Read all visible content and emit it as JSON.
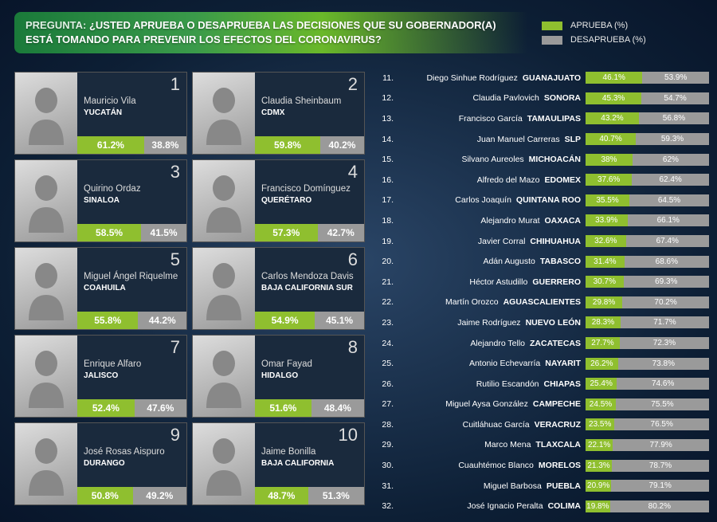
{
  "colors": {
    "approve": "#8fbf2f",
    "disapprove": "#9a9a9a"
  },
  "header": {
    "pregunta_label": "PREGUNTA:",
    "question": "¿USTED APRUEBA O DESAPRUEBA LAS DECISIONES QUE SU GOBERNADOR(A) ESTÁ TOMANDO PARA PREVENIR LOS EFECTOS DEL CORONAVIRUS?",
    "legend_approve": "APRUEBA (%)",
    "legend_disapprove": "DESAPRUEBA (%)"
  },
  "top": [
    {
      "rank": 1,
      "name": "Mauricio Vila",
      "state": "YUCATÁN",
      "approve": 61.2,
      "disapprove": 38.8
    },
    {
      "rank": 2,
      "name": "Claudia Sheinbaum",
      "state": "CDMX",
      "approve": 59.8,
      "disapprove": 40.2
    },
    {
      "rank": 3,
      "name": "Quirino Ordaz",
      "state": "SINALOA",
      "approve": 58.5,
      "disapprove": 41.5
    },
    {
      "rank": 4,
      "name": "Francisco Domínguez",
      "state": "QUERÉTARO",
      "approve": 57.3,
      "disapprove": 42.7
    },
    {
      "rank": 5,
      "name": "Miguel Ángel Riquelme",
      "state": "COAHUILA",
      "approve": 55.8,
      "disapprove": 44.2
    },
    {
      "rank": 6,
      "name": "Carlos Mendoza Davis",
      "state": "BAJA CALIFORNIA SUR",
      "approve": 54.9,
      "disapprove": 45.1
    },
    {
      "rank": 7,
      "name": "Enrique Alfaro",
      "state": "JALISCO",
      "approve": 52.4,
      "disapprove": 47.6
    },
    {
      "rank": 8,
      "name": "Omar Fayad",
      "state": "HIDALGO",
      "approve": 51.6,
      "disapprove": 48.4
    },
    {
      "rank": 9,
      "name": "José Rosas Aispuro",
      "state": "DURANGO",
      "approve": 50.8,
      "disapprove": 49.2
    },
    {
      "rank": 10,
      "name": "Jaime Bonilla",
      "state": "BAJA CALIFORNIA",
      "approve": 48.7,
      "disapprove": 51.3
    }
  ],
  "rest": [
    {
      "rank": 11,
      "name": "Diego Sinhue Rodríguez",
      "state": "GUANAJUATO",
      "approve": 46.1,
      "disapprove": 53.9
    },
    {
      "rank": 12,
      "name": "Claudia Pavlovich",
      "state": "SONORA",
      "approve": 45.3,
      "disapprove": 54.7
    },
    {
      "rank": 13,
      "name": "Francisco García",
      "state": "TAMAULIPAS",
      "approve": 43.2,
      "disapprove": 56.8
    },
    {
      "rank": 14,
      "name": "Juan Manuel Carreras",
      "state": "SLP",
      "approve": 40.7,
      "disapprove": 59.3
    },
    {
      "rank": 15,
      "name": "Silvano Aureoles",
      "state": "MICHOACÁN",
      "approve": 38.0,
      "disapprove": 62.0
    },
    {
      "rank": 16,
      "name": "Alfredo del Mazo",
      "state": "EDOMEX",
      "approve": 37.6,
      "disapprove": 62.4
    },
    {
      "rank": 17,
      "name": "Carlos Joaquín",
      "state": "QUINTANA ROO",
      "approve": 35.5,
      "disapprove": 64.5
    },
    {
      "rank": 18,
      "name": "Alejandro Murat",
      "state": "OAXACA",
      "approve": 33.9,
      "disapprove": 66.1
    },
    {
      "rank": 19,
      "name": "Javier Corral",
      "state": "CHIHUAHUA",
      "approve": 32.6,
      "disapprove": 67.4
    },
    {
      "rank": 20,
      "name": "Adán Augusto",
      "state": "TABASCO",
      "approve": 31.4,
      "disapprove": 68.6
    },
    {
      "rank": 21,
      "name": "Héctor Astudillo",
      "state": "GUERRERO",
      "approve": 30.7,
      "disapprove": 69.3
    },
    {
      "rank": 22,
      "name": "Martín Orozco",
      "state": "AGUASCALIENTES",
      "approve": 29.8,
      "disapprove": 70.2
    },
    {
      "rank": 23,
      "name": "Jaime Rodríguez",
      "state": "NUEVO LEÓN",
      "approve": 28.3,
      "disapprove": 71.7
    },
    {
      "rank": 24,
      "name": "Alejandro Tello",
      "state": "ZACATECAS",
      "approve": 27.7,
      "disapprove": 72.3
    },
    {
      "rank": 25,
      "name": "Antonio Echevarría",
      "state": "NAYARIT",
      "approve": 26.2,
      "disapprove": 73.8
    },
    {
      "rank": 26,
      "name": "Rutilio Escandón",
      "state": "CHIAPAS",
      "approve": 25.4,
      "disapprove": 74.6
    },
    {
      "rank": 27,
      "name": "Miguel Aysa González",
      "state": "CAMPECHE",
      "approve": 24.5,
      "disapprove": 75.5
    },
    {
      "rank": 28,
      "name": "Cuitláhuac García",
      "state": "VERACRUZ",
      "approve": 23.5,
      "disapprove": 76.5
    },
    {
      "rank": 29,
      "name": "Marco Mena",
      "state": "TLAXCALA",
      "approve": 22.1,
      "disapprove": 77.9
    },
    {
      "rank": 30,
      "name": "Cuauhtémoc Blanco",
      "state": "MORELOS",
      "approve": 21.3,
      "disapprove": 78.7
    },
    {
      "rank": 31,
      "name": "Miguel Barbosa",
      "state": "PUEBLA",
      "approve": 20.9,
      "disapprove": 79.1
    },
    {
      "rank": 32,
      "name": "José Ignacio Peralta",
      "state": "COLIMA",
      "approve": 19.8,
      "disapprove": 80.2
    }
  ]
}
